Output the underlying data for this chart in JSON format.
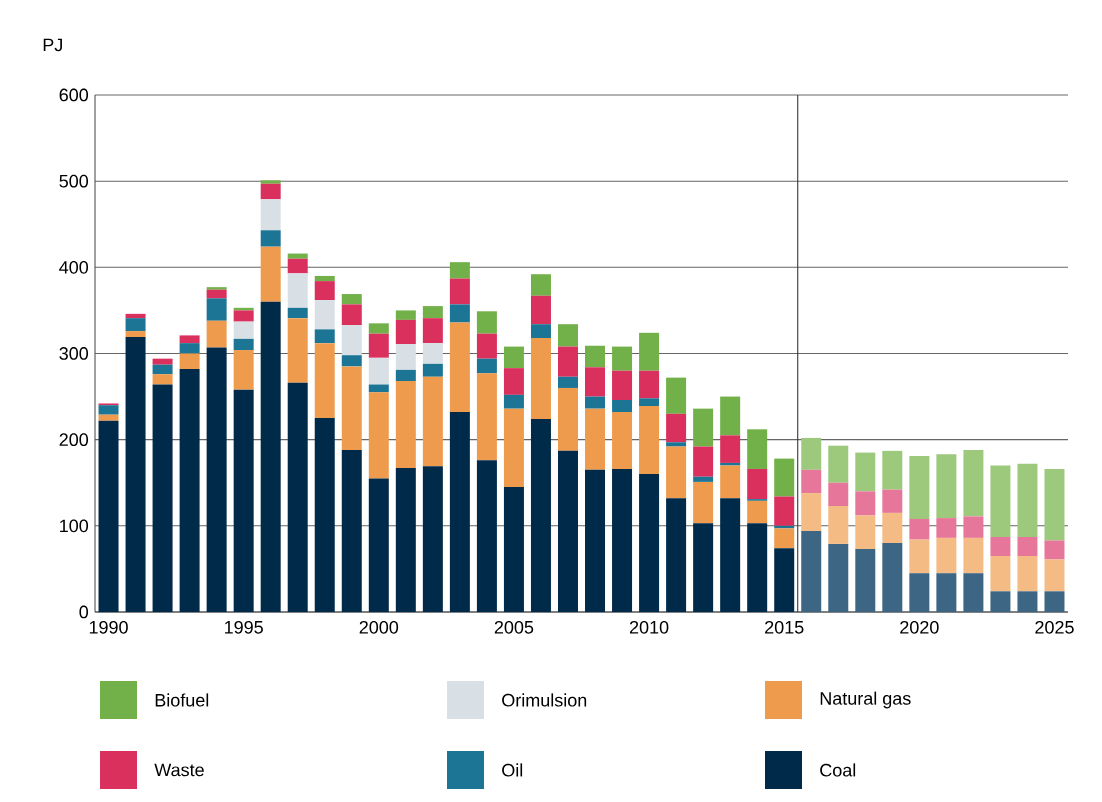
{
  "chart_data": {
    "type": "bar",
    "stacked": true,
    "ylabel": "PJ",
    "x": [
      1990,
      1991,
      1992,
      1993,
      1994,
      1995,
      1996,
      1997,
      1998,
      1999,
      2000,
      2001,
      2002,
      2003,
      2004,
      2005,
      2006,
      2007,
      2008,
      2009,
      2010,
      2011,
      2012,
      2013,
      2014,
      2015,
      2016,
      2017,
      2018,
      2019,
      2020,
      2021,
      2022,
      2023,
      2024,
      2025
    ],
    "xlim": [
      1989.5,
      2025.5
    ],
    "xticks": [
      1990,
      1995,
      2000,
      2005,
      2010,
      2015,
      2020,
      2025
    ],
    "ylim": [
      0,
      600
    ],
    "yticks": [
      0,
      100,
      200,
      300,
      400,
      500,
      600
    ],
    "grid": "y",
    "legend": "bottom",
    "ref_lines": [
      {
        "axis": "x",
        "value": 2015.5,
        "color": "#333333"
      }
    ],
    "series": [
      {
        "name": "Coal",
        "color": "#002a4a",
        "values": [
          222,
          319,
          264,
          282,
          307,
          258,
          360,
          266,
          225,
          188,
          155,
          167,
          169,
          232,
          176,
          145,
          224,
          187,
          165,
          166,
          160,
          132,
          103,
          132,
          103,
          74,
          94,
          79,
          73,
          80,
          45,
          45,
          45,
          24,
          24,
          24
        ],
        "colors": [
          "#002a4a",
          "#002a4a",
          "#002a4a",
          "#002a4a",
          "#002a4a",
          "#002a4a",
          "#002a4a",
          "#002a4a",
          "#002a4a",
          "#002a4a",
          "#002a4a",
          "#002a4a",
          "#002a4a",
          "#002a4a",
          "#002a4a",
          "#002a4a",
          "#002a4a",
          "#002a4a",
          "#002a4a",
          "#002a4a",
          "#002a4a",
          "#002a4a",
          "#002a4a",
          "#002a4a",
          "#002a4a",
          "#002a4a",
          "#3d6584",
          "#3d6584",
          "#3d6584",
          "#3d6584",
          "#3d6584",
          "#3d6584",
          "#3d6584",
          "#3d6584",
          "#3d6584",
          "#3d6584"
        ]
      },
      {
        "name": "Natural gas",
        "color": "#ee9b4e",
        "values": [
          7,
          7,
          12,
          18,
          31,
          46,
          64,
          75,
          87,
          97,
          100,
          101,
          104,
          104,
          101,
          91,
          94,
          73,
          71,
          66,
          79,
          60,
          48,
          38,
          26,
          23,
          44,
          44,
          39,
          35,
          39,
          41,
          41,
          41,
          41,
          37
        ],
        "colors": [
          "#ee9b4e",
          "#ee9b4e",
          "#ee9b4e",
          "#ee9b4e",
          "#ee9b4e",
          "#ee9b4e",
          "#ee9b4e",
          "#ee9b4e",
          "#ee9b4e",
          "#ee9b4e",
          "#ee9b4e",
          "#ee9b4e",
          "#ee9b4e",
          "#ee9b4e",
          "#ee9b4e",
          "#ee9b4e",
          "#ee9b4e",
          "#ee9b4e",
          "#ee9b4e",
          "#ee9b4e",
          "#ee9b4e",
          "#ee9b4e",
          "#ee9b4e",
          "#ee9b4e",
          "#ee9b4e",
          "#ee9b4e",
          "#f4bb85",
          "#f4bb85",
          "#f4bb85",
          "#f4bb85",
          "#f4bb85",
          "#f4bb85",
          "#f4bb85",
          "#f4bb85",
          "#f4bb85",
          "#f4bb85"
        ]
      },
      {
        "name": "Oil",
        "color": "#1d7596",
        "values": [
          11,
          15,
          11,
          12,
          26,
          13,
          19,
          12,
          16,
          13,
          9,
          13,
          15,
          21,
          17,
          16,
          16,
          13,
          14,
          14,
          9,
          5,
          6,
          3,
          2,
          3,
          0,
          0,
          0,
          0,
          0,
          0,
          0,
          0,
          0,
          0
        ],
        "colors": [
          "#1d7596",
          "#1d7596",
          "#1d7596",
          "#1d7596",
          "#1d7596",
          "#1d7596",
          "#1d7596",
          "#1d7596",
          "#1d7596",
          "#1d7596",
          "#1d7596",
          "#1d7596",
          "#1d7596",
          "#1d7596",
          "#1d7596",
          "#1d7596",
          "#1d7596",
          "#1d7596",
          "#1d7596",
          "#1d7596",
          "#1d7596",
          "#1d7596",
          "#1d7596",
          "#1d7596",
          "#1d7596",
          "#1d7596",
          "#5c9bb3",
          "#5c9bb3",
          "#5c9bb3",
          "#5c9bb3",
          "#5c9bb3",
          "#5c9bb3",
          "#5c9bb3",
          "#5c9bb3",
          "#5c9bb3",
          "#5c9bb3"
        ]
      },
      {
        "name": "Orimulsion",
        "color": "#d9e0e5",
        "values": [
          0,
          0,
          0,
          0,
          0,
          20,
          36,
          40,
          34,
          35,
          31,
          30,
          24,
          0,
          0,
          0,
          0,
          0,
          0,
          0,
          0,
          0,
          0,
          0,
          0,
          0,
          0,
          0,
          0,
          0,
          0,
          0,
          0,
          0,
          0,
          0
        ],
        "colors": [
          "#d9e0e5",
          "#d9e0e5",
          "#d9e0e5",
          "#d9e0e5",
          "#d9e0e5",
          "#d9e0e5",
          "#d9e0e5",
          "#d9e0e5",
          "#d9e0e5",
          "#d9e0e5",
          "#d9e0e5",
          "#d9e0e5",
          "#d9e0e5",
          "#d9e0e5",
          "#d9e0e5",
          "#d9e0e5",
          "#d9e0e5",
          "#d9e0e5",
          "#d9e0e5",
          "#d9e0e5",
          "#d9e0e5",
          "#d9e0e5",
          "#d9e0e5",
          "#d9e0e5",
          "#d9e0e5",
          "#d9e0e5",
          "#e6ebee",
          "#e6ebee",
          "#e6ebee",
          "#e6ebee",
          "#e6ebee",
          "#e6ebee",
          "#e6ebee",
          "#e6ebee",
          "#e6ebee",
          "#e6ebee"
        ]
      },
      {
        "name": "Waste",
        "color": "#d9305e",
        "values": [
          2,
          5,
          7,
          9,
          10,
          13,
          18,
          17,
          22,
          24,
          28,
          28,
          29,
          30,
          29,
          31,
          33,
          35,
          34,
          34,
          32,
          33,
          35,
          32,
          35,
          34,
          27,
          27,
          28,
          27,
          24,
          23,
          25,
          22,
          22,
          22
        ],
        "colors": [
          "#d9305e",
          "#d9305e",
          "#d9305e",
          "#d9305e",
          "#d9305e",
          "#d9305e",
          "#d9305e",
          "#d9305e",
          "#d9305e",
          "#d9305e",
          "#d9305e",
          "#d9305e",
          "#d9305e",
          "#d9305e",
          "#d9305e",
          "#d9305e",
          "#d9305e",
          "#d9305e",
          "#d9305e",
          "#d9305e",
          "#d9305e",
          "#d9305e",
          "#d9305e",
          "#d9305e",
          "#d9305e",
          "#d9305e",
          "#e7779a",
          "#e7779a",
          "#e7779a",
          "#e7779a",
          "#e7779a",
          "#e7779a",
          "#e7779a",
          "#e7779a",
          "#e7779a",
          "#e7779a"
        ]
      },
      {
        "name": "Biofuel",
        "color": "#72b14a",
        "values": [
          0,
          0,
          0,
          0,
          3,
          3,
          4,
          6,
          6,
          12,
          12,
          11,
          14,
          19,
          26,
          25,
          25,
          26,
          25,
          28,
          44,
          42,
          44,
          45,
          46,
          44,
          37,
          43,
          45,
          45,
          73,
          74,
          77,
          83,
          85,
          83
        ],
        "colors": [
          "#72b14a",
          "#72b14a",
          "#72b14a",
          "#72b14a",
          "#72b14a",
          "#72b14a",
          "#72b14a",
          "#72b14a",
          "#72b14a",
          "#72b14a",
          "#72b14a",
          "#72b14a",
          "#72b14a",
          "#72b14a",
          "#72b14a",
          "#72b14a",
          "#72b14a",
          "#72b14a",
          "#72b14a",
          "#72b14a",
          "#72b14a",
          "#72b14a",
          "#72b14a",
          "#72b14a",
          "#72b14a",
          "#72b14a",
          "#9cc97c",
          "#9cc97c",
          "#9cc97c",
          "#9cc97c",
          "#9cc97c",
          "#9cc97c",
          "#9cc97c",
          "#9cc97c",
          "#9cc97c",
          "#9cc97c"
        ]
      }
    ]
  }
}
